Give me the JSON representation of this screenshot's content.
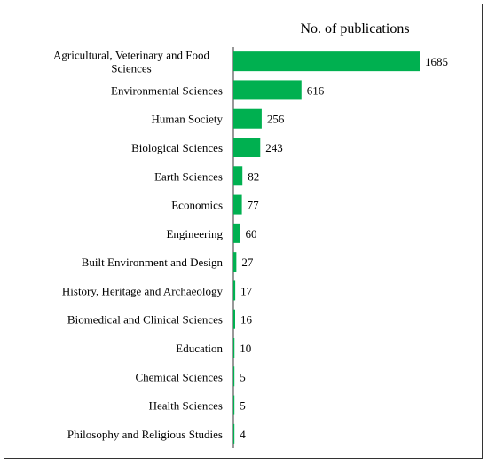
{
  "chart_data": {
    "type": "bar",
    "orientation": "horizontal",
    "title": "No. of publications",
    "xlabel": "",
    "ylabel": "",
    "xlim": [
      0,
      1685
    ],
    "grid": false,
    "bar_color": "#00b050",
    "categories": [
      [
        "Agricultural, Veterinary and Food",
        "Sciences"
      ],
      [
        "Environmental Sciences"
      ],
      [
        "Human Society"
      ],
      [
        "Biological Sciences"
      ],
      [
        "Earth Sciences"
      ],
      [
        "Economics"
      ],
      [
        "Engineering"
      ],
      [
        "Built Environment and Design"
      ],
      [
        "History, Heritage and Archaeology"
      ],
      [
        "Biomedical and Clinical Sciences"
      ],
      [
        "Education"
      ],
      [
        "Chemical Sciences"
      ],
      [
        "Health Sciences"
      ],
      [
        "Philosophy and Religious Studies"
      ]
    ],
    "values": [
      1685,
      616,
      256,
      243,
      82,
      77,
      60,
      27,
      17,
      16,
      10,
      5,
      5,
      4
    ]
  }
}
